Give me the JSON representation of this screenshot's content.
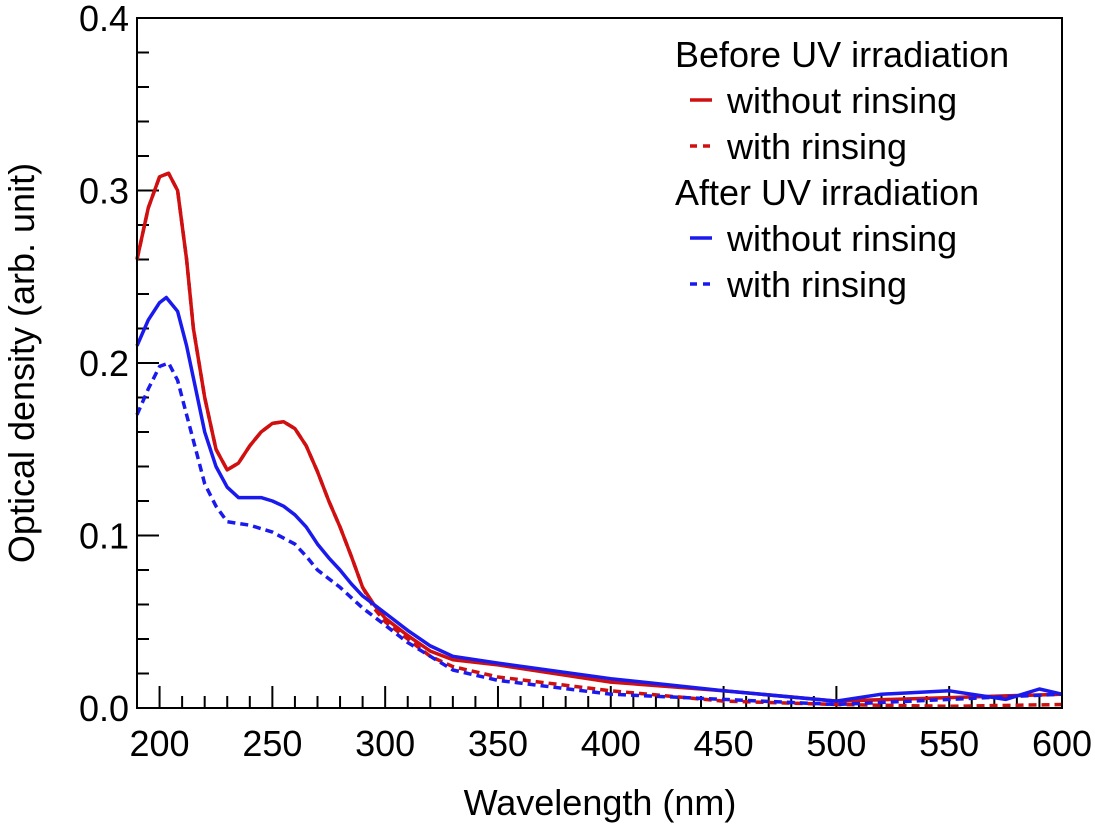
{
  "chart_data": {
    "type": "line",
    "title": "",
    "xlabel": "Wavelength (nm)",
    "ylabel": "Optical density (arb. unit)",
    "xlim": [
      190,
      600
    ],
    "ylim": [
      0,
      0.4
    ],
    "xticks": [
      200,
      250,
      300,
      350,
      400,
      450,
      500,
      550,
      600
    ],
    "xtick_labels": [
      "200",
      "250",
      "300",
      "350",
      "400",
      "450",
      "500",
      "550",
      "600"
    ],
    "yticks": [
      0,
      0.1,
      0.2,
      0.3,
      0.4
    ],
    "ytick_labels": [
      "0.0",
      "0.1",
      "0.2",
      "0.3",
      "0.4"
    ],
    "grid": false,
    "legend_position": "top-right",
    "legend_groups": [
      {
        "title": "Before UV irradiation",
        "entries": [
          "without rinsing",
          "with rinsing"
        ]
      },
      {
        "title": "After UV irradiation",
        "entries": [
          "without rinsing",
          "with rinsing"
        ]
      }
    ],
    "series": [
      {
        "name": "Before UV irradiation - without rinsing",
        "color": "#d01010",
        "dash": "solid",
        "x": [
          190,
          195,
          200,
          204,
          208,
          212,
          215,
          220,
          225,
          230,
          235,
          240,
          245,
          250,
          255,
          260,
          265,
          270,
          275,
          280,
          285,
          290,
          295,
          300,
          310,
          320,
          330,
          350,
          400,
          450,
          500,
          550,
          600
        ],
        "y": [
          0.26,
          0.29,
          0.308,
          0.31,
          0.3,
          0.26,
          0.22,
          0.18,
          0.15,
          0.138,
          0.142,
          0.152,
          0.16,
          0.165,
          0.166,
          0.162,
          0.152,
          0.137,
          0.12,
          0.105,
          0.088,
          0.07,
          0.06,
          0.052,
          0.042,
          0.033,
          0.028,
          0.025,
          0.015,
          0.01,
          0.004,
          0.006,
          0.008
        ]
      },
      {
        "name": "Before UV irradiation - with rinsing",
        "color": "#d01010",
        "dash": "dashed",
        "x": [
          190,
          195,
          200,
          204,
          208,
          212,
          215,
          220,
          225,
          230,
          235,
          240,
          245,
          250,
          255,
          260,
          265,
          270,
          275,
          280,
          285,
          290,
          295,
          300,
          310,
          320,
          330,
          350,
          400,
          450,
          500,
          550,
          600
        ],
        "y": [
          0.26,
          0.29,
          0.308,
          0.31,
          0.3,
          0.26,
          0.22,
          0.18,
          0.15,
          0.138,
          0.142,
          0.152,
          0.16,
          0.165,
          0.166,
          0.162,
          0.152,
          0.137,
          0.12,
          0.105,
          0.088,
          0.07,
          0.058,
          0.05,
          0.04,
          0.03,
          0.024,
          0.018,
          0.01,
          0.004,
          0.002,
          0.001,
          0.002
        ]
      },
      {
        "name": "After UV irradiation - without rinsing",
        "color": "#1a1aee",
        "dash": "solid",
        "x": [
          190,
          195,
          200,
          203,
          208,
          212,
          216,
          220,
          225,
          230,
          235,
          240,
          245,
          250,
          255,
          260,
          265,
          270,
          275,
          280,
          285,
          290,
          300,
          310,
          320,
          330,
          350,
          400,
          450,
          500,
          520,
          550,
          575,
          590,
          600
        ],
        "y": [
          0.21,
          0.225,
          0.235,
          0.238,
          0.23,
          0.21,
          0.185,
          0.16,
          0.14,
          0.128,
          0.122,
          0.122,
          0.122,
          0.12,
          0.117,
          0.112,
          0.105,
          0.095,
          0.087,
          0.08,
          0.072,
          0.065,
          0.055,
          0.045,
          0.036,
          0.03,
          0.026,
          0.017,
          0.01,
          0.004,
          0.008,
          0.01,
          0.005,
          0.011,
          0.008
        ]
      },
      {
        "name": "After UV irradiation - with rinsing",
        "color": "#1a1aee",
        "dash": "dashed",
        "x": [
          190,
          195,
          200,
          204,
          208,
          212,
          216,
          220,
          225,
          230,
          240,
          250,
          260,
          265,
          270,
          280,
          290,
          300,
          310,
          320,
          330,
          350,
          400,
          450,
          500,
          550,
          600
        ],
        "y": [
          0.17,
          0.185,
          0.198,
          0.2,
          0.19,
          0.17,
          0.15,
          0.13,
          0.117,
          0.108,
          0.106,
          0.102,
          0.095,
          0.088,
          0.08,
          0.07,
          0.058,
          0.048,
          0.038,
          0.03,
          0.022,
          0.016,
          0.008,
          0.005,
          0.002,
          0.005,
          0.008
        ]
      }
    ]
  }
}
